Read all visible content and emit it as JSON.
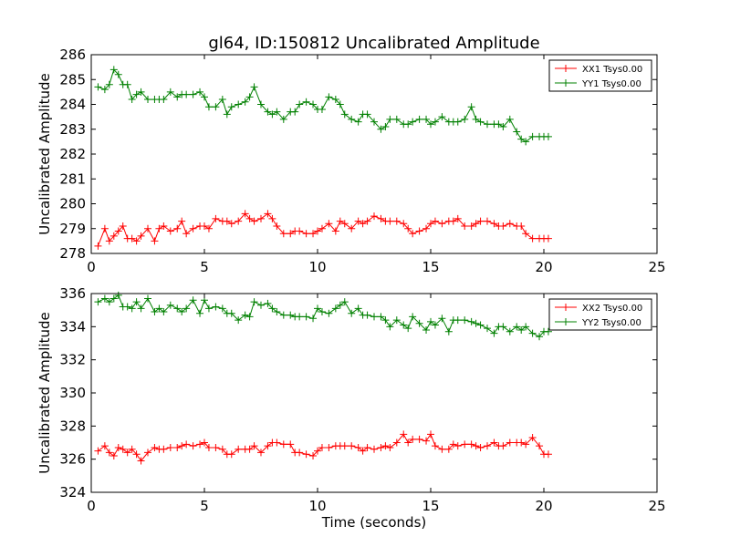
{
  "figure": {
    "title": "gl64, ID:150812 Uncalibrated Amplitude",
    "xlabel": "Time (seconds)"
  },
  "chart_data": [
    {
      "type": "line",
      "title": "gl64, ID:150812 Uncalibrated Amplitude",
      "xlabel": "",
      "ylabel": "Uncalibrated Amplitude",
      "xlim": [
        0,
        25
      ],
      "ylim": [
        278,
        286
      ],
      "xticks": [
        0,
        5,
        10,
        15,
        20,
        25
      ],
      "yticks": [
        278,
        279,
        280,
        281,
        282,
        283,
        284,
        285,
        286
      ],
      "legend_position": "top-right",
      "x": [
        0.3,
        0.6,
        0.8,
        1.0,
        1.2,
        1.4,
        1.6,
        1.8,
        2.0,
        2.2,
        2.5,
        2.8,
        3.0,
        3.2,
        3.5,
        3.8,
        4.0,
        4.2,
        4.5,
        4.8,
        5.0,
        5.2,
        5.5,
        5.8,
        6.0,
        6.2,
        6.5,
        6.8,
        7.0,
        7.2,
        7.5,
        7.8,
        8.0,
        8.2,
        8.5,
        8.8,
        9.0,
        9.2,
        9.5,
        9.8,
        10.0,
        10.2,
        10.5,
        10.8,
        11.0,
        11.2,
        11.5,
        11.8,
        12.0,
        12.2,
        12.5,
        12.8,
        13.0,
        13.2,
        13.5,
        13.8,
        14.0,
        14.2,
        14.5,
        14.8,
        15.0,
        15.2,
        15.5,
        15.8,
        16.0,
        16.2,
        16.5,
        16.8,
        17.0,
        17.2,
        17.5,
        17.8,
        18.0,
        18.2,
        18.5,
        18.8,
        19.0,
        19.2,
        19.5,
        19.8,
        20.0,
        20.2
      ],
      "series": [
        {
          "name": "XX1 Tsys0.00",
          "color": "#ff0000",
          "values": [
            278.3,
            279.0,
            278.5,
            278.7,
            278.9,
            279.1,
            278.6,
            278.6,
            278.5,
            278.7,
            279.0,
            278.5,
            279.0,
            279.1,
            278.9,
            279.0,
            279.3,
            278.8,
            279.0,
            279.1,
            279.1,
            279.0,
            279.4,
            279.3,
            279.3,
            279.2,
            279.3,
            279.6,
            279.4,
            279.3,
            279.4,
            279.6,
            279.4,
            279.1,
            278.8,
            278.8,
            278.9,
            278.9,
            278.8,
            278.8,
            278.9,
            279.0,
            279.2,
            278.9,
            279.3,
            279.2,
            279.0,
            279.3,
            279.2,
            279.3,
            279.5,
            279.4,
            279.3,
            279.3,
            279.3,
            279.2,
            279.0,
            278.8,
            278.9,
            279.0,
            279.2,
            279.3,
            279.2,
            279.3,
            279.3,
            279.4,
            279.1,
            279.1,
            279.2,
            279.3,
            279.3,
            279.2,
            279.1,
            279.1,
            279.2,
            279.1,
            279.1,
            278.8,
            278.6,
            278.6,
            278.6,
            278.6
          ]
        },
        {
          "name": "YY1 Tsys0.00",
          "color": "#008000",
          "values": [
            284.7,
            284.6,
            284.8,
            285.4,
            285.2,
            284.8,
            284.8,
            284.2,
            284.4,
            284.5,
            284.2,
            284.2,
            284.2,
            284.2,
            284.5,
            284.3,
            284.4,
            284.4,
            284.4,
            284.5,
            284.3,
            283.9,
            283.9,
            284.2,
            283.6,
            283.9,
            284.0,
            284.1,
            284.3,
            284.7,
            284.0,
            283.7,
            283.6,
            283.7,
            283.4,
            283.7,
            283.7,
            284.0,
            284.1,
            284.0,
            283.8,
            283.8,
            284.3,
            284.2,
            284.0,
            283.6,
            283.4,
            283.3,
            283.6,
            283.6,
            283.3,
            283.0,
            283.1,
            283.4,
            283.4,
            283.2,
            283.2,
            283.3,
            283.4,
            283.4,
            283.2,
            283.3,
            283.5,
            283.3,
            283.3,
            283.3,
            283.4,
            283.9,
            283.4,
            283.3,
            283.2,
            283.2,
            283.2,
            283.1,
            283.4,
            282.9,
            282.6,
            282.5,
            282.7,
            282.7,
            282.7,
            282.7
          ]
        }
      ]
    },
    {
      "type": "line",
      "title": "",
      "xlabel": "Time (seconds)",
      "ylabel": "Uncalibrated Amplitude",
      "xlim": [
        0,
        25
      ],
      "ylim": [
        324,
        336
      ],
      "xticks": [
        0,
        5,
        10,
        15,
        20,
        25
      ],
      "yticks": [
        324,
        326,
        328,
        330,
        332,
        334,
        336
      ],
      "legend_position": "top-right",
      "x": [
        0.3,
        0.6,
        0.8,
        1.0,
        1.2,
        1.4,
        1.6,
        1.8,
        2.0,
        2.2,
        2.5,
        2.8,
        3.0,
        3.2,
        3.5,
        3.8,
        4.0,
        4.2,
        4.5,
        4.8,
        5.0,
        5.2,
        5.5,
        5.8,
        6.0,
        6.2,
        6.5,
        6.8,
        7.0,
        7.2,
        7.5,
        7.8,
        8.0,
        8.2,
        8.5,
        8.8,
        9.0,
        9.2,
        9.5,
        9.8,
        10.0,
        10.2,
        10.5,
        10.8,
        11.0,
        11.2,
        11.5,
        11.8,
        12.0,
        12.2,
        12.5,
        12.8,
        13.0,
        13.2,
        13.5,
        13.8,
        14.0,
        14.2,
        14.5,
        14.8,
        15.0,
        15.2,
        15.5,
        15.8,
        16.0,
        16.2,
        16.5,
        16.8,
        17.0,
        17.2,
        17.5,
        17.8,
        18.0,
        18.2,
        18.5,
        18.8,
        19.0,
        19.2,
        19.5,
        19.8,
        20.0,
        20.2
      ],
      "series": [
        {
          "name": "XX2 Tsys0.00",
          "color": "#ff0000",
          "values": [
            326.5,
            326.8,
            326.4,
            326.2,
            326.7,
            326.6,
            326.4,
            326.6,
            326.3,
            325.9,
            326.4,
            326.7,
            326.6,
            326.6,
            326.7,
            326.7,
            326.8,
            326.9,
            326.8,
            326.9,
            327.0,
            326.7,
            326.7,
            326.6,
            326.3,
            326.3,
            326.6,
            326.6,
            326.6,
            326.8,
            326.4,
            326.8,
            327.0,
            327.0,
            326.9,
            326.9,
            326.4,
            326.4,
            326.3,
            326.2,
            326.5,
            326.7,
            326.7,
            326.8,
            326.8,
            326.8,
            326.8,
            326.7,
            326.5,
            326.7,
            326.6,
            326.7,
            326.8,
            326.7,
            327.0,
            327.5,
            327.0,
            327.2,
            327.2,
            327.1,
            327.5,
            326.8,
            326.6,
            326.6,
            326.9,
            326.8,
            326.9,
            326.9,
            326.8,
            326.7,
            326.8,
            327.0,
            326.8,
            326.8,
            327.0,
            327.0,
            327.0,
            326.9,
            327.3,
            326.8,
            326.3,
            326.3
          ]
        },
        {
          "name": "YY2 Tsys0.00",
          "color": "#008000",
          "values": [
            335.5,
            335.7,
            335.5,
            335.7,
            335.9,
            335.2,
            335.2,
            335.1,
            335.5,
            335.1,
            335.7,
            334.9,
            335.1,
            334.9,
            335.3,
            335.1,
            334.9,
            335.1,
            335.6,
            334.8,
            335.6,
            335.1,
            335.2,
            335.1,
            334.8,
            334.8,
            334.4,
            334.7,
            334.6,
            335.5,
            335.3,
            335.4,
            335.1,
            334.9,
            334.7,
            334.7,
            334.6,
            334.6,
            334.6,
            334.5,
            335.1,
            334.9,
            334.8,
            335.1,
            335.3,
            335.5,
            334.8,
            335.1,
            334.7,
            334.7,
            334.6,
            334.6,
            334.4,
            334.0,
            334.4,
            334.1,
            333.9,
            334.6,
            334.2,
            333.8,
            334.3,
            334.1,
            334.5,
            333.7,
            334.4,
            334.4,
            334.4,
            334.3,
            334.2,
            334.1,
            333.9,
            333.6,
            334.0,
            334.0,
            333.7,
            334.0,
            333.8,
            334.0,
            333.6,
            333.4,
            333.7,
            333.7
          ]
        }
      ]
    }
  ]
}
